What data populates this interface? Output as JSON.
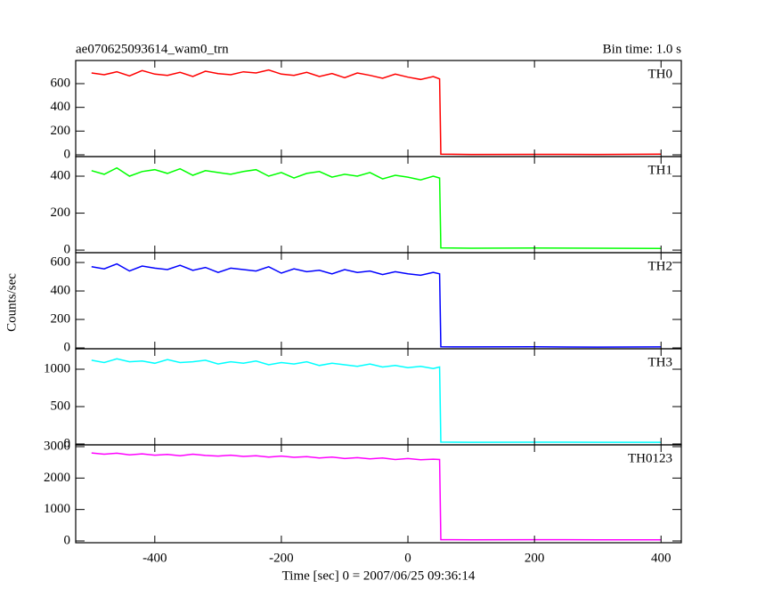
{
  "chart_data": {
    "type": "line",
    "title": "ae070625093614_wam0_trn",
    "subtitle": "Bin time: 1.0 s",
    "ylabel": "Counts/sec",
    "xlabel": "Time [sec] 0 = 2007/06/25 09:36:14",
    "xlim": [
      -525,
      432
    ],
    "xticks": [
      -400,
      -200,
      0,
      200,
      400
    ],
    "x": [
      -500,
      -480,
      -460,
      -440,
      -420,
      -400,
      -380,
      -360,
      -340,
      -320,
      -300,
      -280,
      -260,
      -240,
      -220,
      -200,
      -180,
      -160,
      -140,
      -120,
      -100,
      -80,
      -60,
      -40,
      -20,
      0,
      20,
      40,
      50,
      52,
      100,
      200,
      300,
      400
    ],
    "panels": [
      {
        "name": "TH0",
        "color": "#ff0000",
        "ylim": [
          -15,
          795
        ],
        "yticks": [
          0,
          200,
          400,
          600
        ],
        "values": [
          690,
          675,
          700,
          665,
          710,
          680,
          670,
          695,
          660,
          705,
          685,
          675,
          700,
          690,
          715,
          680,
          670,
          695,
          660,
          685,
          650,
          690,
          670,
          645,
          680,
          655,
          635,
          660,
          640,
          5,
          3,
          4,
          3,
          5
        ]
      },
      {
        "name": "TH1",
        "color": "#00ff00",
        "ylim": [
          -14,
          506
        ],
        "yticks": [
          0,
          200,
          400
        ],
        "values": [
          430,
          410,
          445,
          400,
          425,
          435,
          415,
          440,
          405,
          430,
          420,
          410,
          425,
          435,
          400,
          420,
          390,
          415,
          425,
          395,
          410,
          400,
          420,
          385,
          405,
          395,
          380,
          400,
          390,
          12,
          10,
          11,
          10,
          9
        ]
      },
      {
        "name": "TH2",
        "color": "#0000ff",
        "ylim": [
          -6,
          669
        ],
        "yticks": [
          0,
          200,
          400,
          600
        ],
        "values": [
          570,
          555,
          590,
          540,
          575,
          560,
          550,
          580,
          545,
          565,
          530,
          560,
          550,
          540,
          570,
          525,
          555,
          535,
          545,
          520,
          550,
          530,
          540,
          515,
          535,
          520,
          510,
          530,
          520,
          8,
          7,
          8,
          6,
          7
        ]
      },
      {
        "name": "TH3",
        "color": "#00ffff",
        "ylim": [
          -12,
          1274
        ],
        "yticks": [
          0,
          500,
          1000
        ],
        "values": [
          1120,
          1090,
          1140,
          1100,
          1110,
          1080,
          1130,
          1090,
          1100,
          1120,
          1070,
          1100,
          1080,
          1110,
          1060,
          1090,
          1070,
          1100,
          1050,
          1080,
          1060,
          1040,
          1070,
          1030,
          1050,
          1020,
          1040,
          1010,
          1030,
          25,
          22,
          24,
          23,
          22
        ]
      },
      {
        "name": "TH0123",
        "color": "#ff00ff",
        "ylim": [
          -57,
          3057
        ],
        "yticks": [
          0,
          1000,
          2000,
          3000
        ],
        "values": [
          2800,
          2760,
          2790,
          2740,
          2770,
          2730,
          2750,
          2710,
          2760,
          2720,
          2700,
          2730,
          2690,
          2710,
          2670,
          2700,
          2660,
          2680,
          2640,
          2670,
          2620,
          2650,
          2610,
          2640,
          2590,
          2620,
          2580,
          2600,
          2590,
          40,
          35,
          38,
          36,
          34
        ]
      }
    ]
  }
}
